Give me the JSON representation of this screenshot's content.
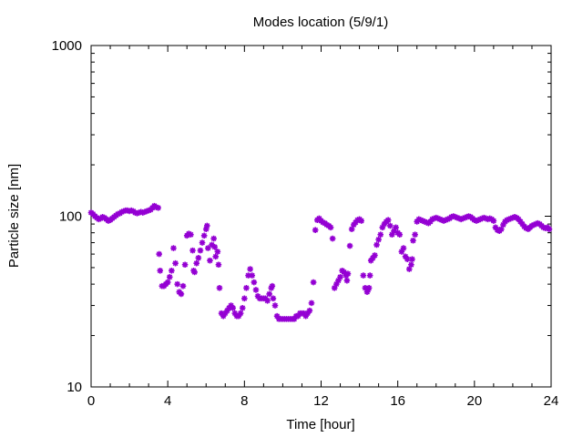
{
  "chart_data": {
    "type": "scatter",
    "title": "Modes location (5/9/1)",
    "xlabel": "Time [hour]",
    "ylabel": "Particle size [nm]",
    "xlim": [
      0,
      24
    ],
    "ylim": [
      10,
      1000
    ],
    "yscale": "log",
    "x_ticks": [
      "0",
      "4",
      "8",
      "12",
      "16",
      "20",
      "24"
    ],
    "y_ticks": [
      "10",
      "100",
      "1000"
    ],
    "grid": false,
    "legend": "none",
    "marker_color": "#9400d3",
    "series": [
      {
        "points": [
          [
            0.0,
            105
          ],
          [
            0.1,
            103
          ],
          [
            0.2,
            100
          ],
          [
            0.3,
            98
          ],
          [
            0.4,
            96
          ],
          [
            0.5,
            97
          ],
          [
            0.6,
            99
          ],
          [
            0.7,
            98
          ],
          [
            0.8,
            96
          ],
          [
            0.9,
            94
          ],
          [
            1.0,
            95
          ],
          [
            1.1,
            97
          ],
          [
            1.2,
            99
          ],
          [
            1.3,
            101
          ],
          [
            1.4,
            103
          ],
          [
            1.5,
            104
          ],
          [
            1.6,
            106
          ],
          [
            1.7,
            107
          ],
          [
            1.8,
            108
          ],
          [
            1.9,
            108
          ],
          [
            2.0,
            107
          ],
          [
            2.1,
            108
          ],
          [
            2.2,
            107
          ],
          [
            2.3,
            105
          ],
          [
            2.4,
            104
          ],
          [
            2.5,
            105
          ],
          [
            2.6,
            106
          ],
          [
            2.7,
            105
          ],
          [
            2.8,
            106
          ],
          [
            2.9,
            107
          ],
          [
            3.0,
            108
          ],
          [
            3.1,
            109
          ],
          [
            3.2,
            112
          ],
          [
            3.3,
            115
          ],
          [
            3.4,
            113
          ],
          [
            3.5,
            112
          ],
          [
            3.55,
            60
          ],
          [
            3.6,
            48
          ],
          [
            3.7,
            39
          ],
          [
            3.8,
            39
          ],
          [
            3.9,
            40
          ],
          [
            4.0,
            41
          ],
          [
            4.1,
            44
          ],
          [
            4.2,
            48
          ],
          [
            4.3,
            65
          ],
          [
            4.4,
            53
          ],
          [
            4.5,
            40
          ],
          [
            4.6,
            36
          ],
          [
            4.7,
            35
          ],
          [
            4.8,
            39
          ],
          [
            4.9,
            52
          ],
          [
            5.0,
            77
          ],
          [
            5.1,
            79
          ],
          [
            5.2,
            78
          ],
          [
            5.3,
            63
          ],
          [
            5.35,
            48
          ],
          [
            5.4,
            47
          ],
          [
            5.5,
            53
          ],
          [
            5.6,
            57
          ],
          [
            5.7,
            63
          ],
          [
            5.8,
            70
          ],
          [
            5.9,
            77
          ],
          [
            6.0,
            84
          ],
          [
            6.05,
            88
          ],
          [
            6.1,
            65
          ],
          [
            6.2,
            55
          ],
          [
            6.3,
            68
          ],
          [
            6.4,
            74
          ],
          [
            6.45,
            66
          ],
          [
            6.5,
            58
          ],
          [
            6.6,
            62
          ],
          [
            6.65,
            52
          ],
          [
            6.7,
            38
          ],
          [
            6.8,
            27
          ],
          [
            6.9,
            26
          ],
          [
            7.0,
            27
          ],
          [
            7.1,
            28
          ],
          [
            7.2,
            29
          ],
          [
            7.3,
            30
          ],
          [
            7.4,
            29
          ],
          [
            7.5,
            27
          ],
          [
            7.6,
            26
          ],
          [
            7.7,
            26
          ],
          [
            7.8,
            27
          ],
          [
            7.9,
            29
          ],
          [
            8.0,
            33
          ],
          [
            8.1,
            38
          ],
          [
            8.2,
            45
          ],
          [
            8.3,
            49
          ],
          [
            8.4,
            45
          ],
          [
            8.5,
            41
          ],
          [
            8.6,
            37
          ],
          [
            8.7,
            34
          ],
          [
            8.8,
            33
          ],
          [
            8.9,
            33
          ],
          [
            9.0,
            33
          ],
          [
            9.1,
            33
          ],
          [
            9.2,
            32
          ],
          [
            9.3,
            35
          ],
          [
            9.4,
            38
          ],
          [
            9.45,
            39
          ],
          [
            9.5,
            33
          ],
          [
            9.6,
            30
          ],
          [
            9.7,
            26
          ],
          [
            9.8,
            25
          ],
          [
            9.9,
            25
          ],
          [
            10.0,
            25
          ],
          [
            10.1,
            25
          ],
          [
            10.2,
            25
          ],
          [
            10.3,
            25
          ],
          [
            10.4,
            25
          ],
          [
            10.5,
            25
          ],
          [
            10.6,
            25
          ],
          [
            10.7,
            26
          ],
          [
            10.8,
            26
          ],
          [
            10.9,
            27
          ],
          [
            11.0,
            27
          ],
          [
            11.1,
            27
          ],
          [
            11.2,
            26
          ],
          [
            11.3,
            27
          ],
          [
            11.4,
            28
          ],
          [
            11.5,
            31
          ],
          [
            11.6,
            41
          ],
          [
            11.7,
            83
          ],
          [
            11.8,
            95
          ],
          [
            11.9,
            97
          ],
          [
            12.0,
            94
          ],
          [
            12.1,
            92
          ],
          [
            12.2,
            91
          ],
          [
            12.3,
            89
          ],
          [
            12.4,
            88
          ],
          [
            12.5,
            86
          ],
          [
            12.6,
            74
          ],
          [
            12.7,
            38
          ],
          [
            12.8,
            40
          ],
          [
            12.9,
            42
          ],
          [
            13.0,
            44
          ],
          [
            13.1,
            48
          ],
          [
            13.2,
            47
          ],
          [
            13.3,
            45
          ],
          [
            13.35,
            42
          ],
          [
            13.4,
            46
          ],
          [
            13.5,
            67
          ],
          [
            13.6,
            84
          ],
          [
            13.7,
            89
          ],
          [
            13.8,
            92
          ],
          [
            13.9,
            95
          ],
          [
            14.0,
            96
          ],
          [
            14.1,
            94
          ],
          [
            14.2,
            45
          ],
          [
            14.3,
            38
          ],
          [
            14.4,
            36
          ],
          [
            14.45,
            37
          ],
          [
            14.5,
            38
          ],
          [
            14.55,
            45
          ],
          [
            14.6,
            55
          ],
          [
            14.7,
            57
          ],
          [
            14.8,
            59
          ],
          [
            14.9,
            68
          ],
          [
            15.0,
            73
          ],
          [
            15.1,
            78
          ],
          [
            15.2,
            86
          ],
          [
            15.3,
            90
          ],
          [
            15.4,
            93
          ],
          [
            15.5,
            95
          ],
          [
            15.6,
            88
          ],
          [
            15.7,
            78
          ],
          [
            15.8,
            82
          ],
          [
            15.9,
            86
          ],
          [
            16.0,
            80
          ],
          [
            16.1,
            78
          ],
          [
            16.2,
            62
          ],
          [
            16.3,
            65
          ],
          [
            16.4,
            58
          ],
          [
            16.5,
            56
          ],
          [
            16.6,
            49
          ],
          [
            16.7,
            52
          ],
          [
            16.75,
            56
          ],
          [
            16.8,
            72
          ],
          [
            16.9,
            78
          ],
          [
            17.0,
            93
          ],
          [
            17.1,
            96
          ],
          [
            17.2,
            95
          ],
          [
            17.3,
            94
          ],
          [
            17.4,
            93
          ],
          [
            17.5,
            92
          ],
          [
            17.6,
            91
          ],
          [
            17.7,
            93
          ],
          [
            17.8,
            96
          ],
          [
            17.9,
            97
          ],
          [
            18.0,
            98
          ],
          [
            18.1,
            97
          ],
          [
            18.2,
            96
          ],
          [
            18.3,
            95
          ],
          [
            18.4,
            94
          ],
          [
            18.5,
            95
          ],
          [
            18.6,
            96
          ],
          [
            18.7,
            97
          ],
          [
            18.8,
            99
          ],
          [
            18.9,
            100
          ],
          [
            19.0,
            99
          ],
          [
            19.1,
            98
          ],
          [
            19.2,
            97
          ],
          [
            19.3,
            96
          ],
          [
            19.4,
            97
          ],
          [
            19.5,
            98
          ],
          [
            19.6,
            99
          ],
          [
            19.7,
            100
          ],
          [
            19.8,
            99
          ],
          [
            19.9,
            97
          ],
          [
            20.0,
            95
          ],
          [
            20.1,
            94
          ],
          [
            20.2,
            95
          ],
          [
            20.3,
            96
          ],
          [
            20.4,
            97
          ],
          [
            20.5,
            98
          ],
          [
            20.6,
            97
          ],
          [
            20.7,
            96
          ],
          [
            20.8,
            97
          ],
          [
            20.9,
            96
          ],
          [
            21.0,
            94
          ],
          [
            21.1,
            86
          ],
          [
            21.2,
            83
          ],
          [
            21.3,
            82
          ],
          [
            21.4,
            84
          ],
          [
            21.5,
            89
          ],
          [
            21.6,
            93
          ],
          [
            21.7,
            95
          ],
          [
            21.8,
            96
          ],
          [
            21.9,
            97
          ],
          [
            22.0,
            98
          ],
          [
            22.1,
            99
          ],
          [
            22.2,
            98
          ],
          [
            22.3,
            96
          ],
          [
            22.4,
            93
          ],
          [
            22.5,
            90
          ],
          [
            22.6,
            87
          ],
          [
            22.7,
            85
          ],
          [
            22.8,
            84
          ],
          [
            22.9,
            86
          ],
          [
            23.0,
            88
          ],
          [
            23.1,
            89
          ],
          [
            23.2,
            90
          ],
          [
            23.3,
            91
          ],
          [
            23.4,
            90
          ],
          [
            23.5,
            88
          ],
          [
            23.6,
            86
          ],
          [
            23.7,
            85
          ],
          [
            23.8,
            86
          ],
          [
            23.9,
            84
          ]
        ]
      }
    ]
  }
}
